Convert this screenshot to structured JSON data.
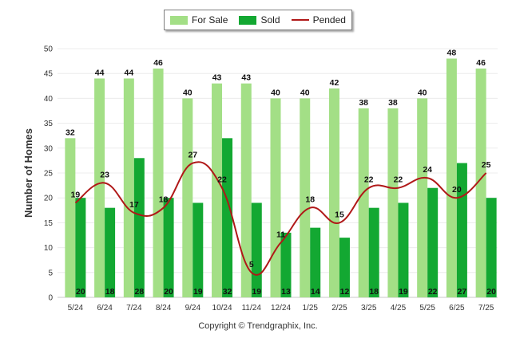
{
  "legend": {
    "items": [
      {
        "label": "For Sale",
        "color": "#a3df86",
        "kind": "bar"
      },
      {
        "label": "Sold",
        "color": "#13a832",
        "kind": "bar"
      },
      {
        "label": "Pended",
        "color": "#b01818",
        "kind": "line"
      }
    ]
  },
  "footer": {
    "copyright": "Copyright © Trendgraphix, Inc."
  },
  "chart_data": {
    "type": "bar",
    "title": "",
    "xlabel": "",
    "ylabel": "Number of Homes",
    "ylim": [
      0,
      50
    ],
    "yticks": [
      0,
      5,
      10,
      15,
      20,
      25,
      30,
      35,
      40,
      45,
      50
    ],
    "grid": true,
    "legend_position": "top-center",
    "categories": [
      "5/24",
      "6/24",
      "7/24",
      "8/24",
      "9/24",
      "10/24",
      "11/24",
      "12/24",
      "1/25",
      "2/25",
      "3/25",
      "4/25",
      "5/25",
      "6/25",
      "7/25"
    ],
    "series": [
      {
        "name": "For Sale",
        "type": "bar",
        "color": "#a3df86",
        "values": [
          32,
          44,
          44,
          46,
          40,
          43,
          43,
          40,
          40,
          42,
          38,
          38,
          40,
          48,
          46
        ]
      },
      {
        "name": "Sold",
        "type": "bar",
        "color": "#13a832",
        "values": [
          20,
          18,
          28,
          20,
          19,
          32,
          19,
          13,
          14,
          12,
          18,
          19,
          22,
          27,
          20
        ]
      },
      {
        "name": "Pended",
        "type": "line",
        "color": "#b01818",
        "values": [
          19,
          23,
          17,
          18,
          27,
          22,
          5,
          11,
          18,
          15,
          22,
          22,
          24,
          20,
          25
        ]
      }
    ]
  }
}
